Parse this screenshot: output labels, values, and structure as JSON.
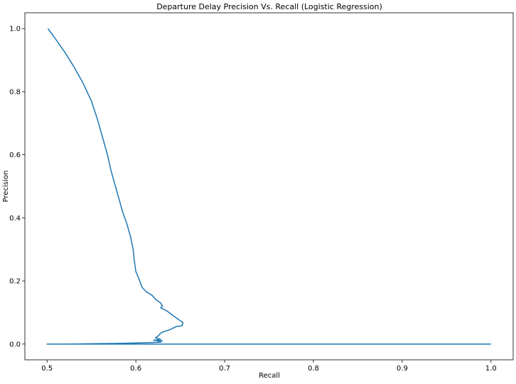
{
  "chart_data": {
    "type": "line",
    "title": "Departure Delay Precision Vs. Recall (Logistic Regression)",
    "xlabel": "Recall",
    "ylabel": "Precision",
    "xlim": [
      0.475,
      1.025
    ],
    "ylim": [
      -0.05,
      1.05
    ],
    "xticks": [
      0.5,
      0.6,
      0.7,
      0.8,
      0.9,
      1.0
    ],
    "xtick_labels": [
      "0.5",
      "0.6",
      "0.7",
      "0.8",
      "0.9",
      "1.0"
    ],
    "yticks": [
      0.0,
      0.2,
      0.4,
      0.6,
      0.8,
      1.0
    ],
    "ytick_labels": [
      "0.0",
      "0.2",
      "0.4",
      "0.6",
      "0.8",
      "1.0"
    ],
    "grid": false,
    "line_color": "#1f77b4",
    "series": [
      {
        "x": [
          0.501,
          0.51,
          0.52,
          0.53,
          0.54,
          0.55,
          0.557,
          0.563,
          0.568,
          0.572,
          0.576,
          0.58,
          0.585,
          0.59,
          0.594,
          0.597,
          0.598,
          0.6,
          0.603,
          0.607,
          0.612,
          0.618,
          0.623,
          0.628,
          0.63,
          0.628,
          0.635,
          0.642,
          0.648,
          0.653,
          0.652,
          0.645,
          0.638,
          0.632,
          0.628,
          0.625,
          0.622,
          0.628,
          0.62,
          0.63,
          0.625,
          0.628,
          0.61,
          0.58,
          0.55,
          0.52,
          0.5,
          1.0
        ],
        "y": [
          1.0,
          0.965,
          0.925,
          0.88,
          0.83,
          0.77,
          0.71,
          0.65,
          0.6,
          0.55,
          0.51,
          0.47,
          0.42,
          0.38,
          0.34,
          0.3,
          0.27,
          0.23,
          0.21,
          0.18,
          0.165,
          0.155,
          0.14,
          0.13,
          0.12,
          0.115,
          0.105,
          0.09,
          0.078,
          0.068,
          0.058,
          0.055,
          0.045,
          0.04,
          0.035,
          0.025,
          0.02,
          0.015,
          0.012,
          0.01,
          0.008,
          0.006,
          0.004,
          0.002,
          0.001,
          0.0,
          0.0,
          0.0
        ]
      }
    ]
  }
}
